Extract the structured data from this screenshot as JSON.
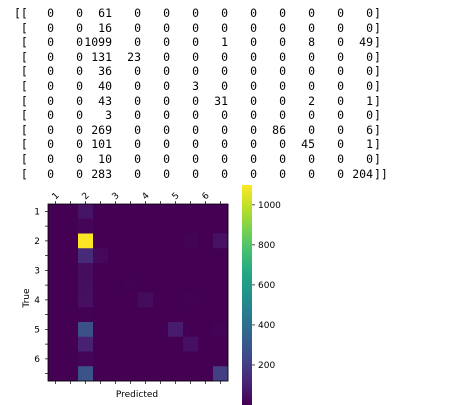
{
  "matrix_printout": {
    "rows": [
      [
        0,
        0,
        61,
        0,
        0,
        0,
        0,
        0,
        0,
        0,
        0,
        0
      ],
      [
        0,
        0,
        16,
        0,
        0,
        0,
        0,
        0,
        0,
        0,
        0,
        0
      ],
      [
        0,
        0,
        1099,
        0,
        0,
        0,
        1,
        0,
        0,
        8,
        0,
        49
      ],
      [
        0,
        0,
        131,
        23,
        0,
        0,
        0,
        0,
        0,
        0,
        0,
        0
      ],
      [
        0,
        0,
        36,
        0,
        0,
        0,
        0,
        0,
        0,
        0,
        0,
        0
      ],
      [
        0,
        0,
        40,
        0,
        0,
        3,
        0,
        0,
        0,
        0,
        0,
        0
      ],
      [
        0,
        0,
        43,
        0,
        0,
        0,
        31,
        0,
        0,
        2,
        0,
        1
      ],
      [
        0,
        0,
        3,
        0,
        0,
        0,
        0,
        0,
        0,
        0,
        0,
        0
      ],
      [
        0,
        0,
        269,
        0,
        0,
        0,
        0,
        0,
        86,
        0,
        0,
        6
      ],
      [
        0,
        0,
        101,
        0,
        0,
        0,
        0,
        0,
        0,
        45,
        0,
        1
      ],
      [
        0,
        0,
        10,
        0,
        0,
        0,
        0,
        0,
        0,
        0,
        0,
        0
      ],
      [
        0,
        0,
        283,
        0,
        0,
        0,
        0,
        0,
        0,
        0,
        0,
        204
      ]
    ]
  },
  "chart_data": {
    "type": "heatmap",
    "title": "",
    "xlabel": "Predicted",
    "ylabel": "True",
    "x_tick_labels": [
      "1",
      "2",
      "3",
      "4",
      "5",
      "6"
    ],
    "y_tick_labels": [
      "1",
      "2",
      "3",
      "4",
      "5",
      "6"
    ],
    "colorbar_ticks": [
      200,
      400,
      600,
      800,
      1000
    ],
    "value_range": [
      0,
      1099
    ],
    "colormap": "viridis"
  }
}
